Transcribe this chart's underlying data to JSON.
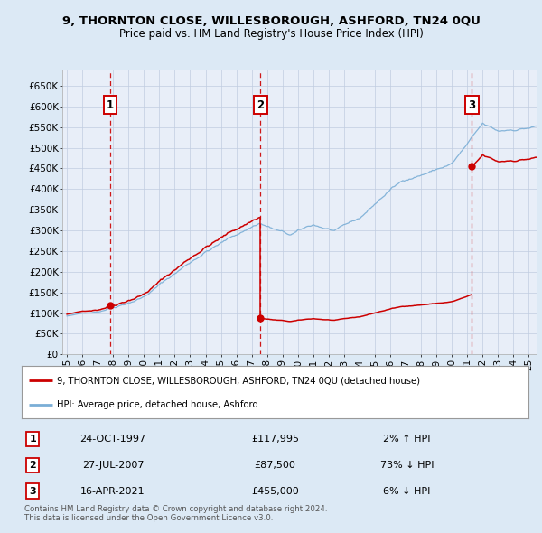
{
  "title": "9, THORNTON CLOSE, WILLESBOROUGH, ASHFORD, TN24 0QU",
  "subtitle": "Price paid vs. HM Land Registry's House Price Index (HPI)",
  "bg_color": "#dce9f5",
  "plot_bg_color": "#e8eef8",
  "grid_color": "#c0cce0",
  "hpi_color": "#7aaed6",
  "price_color": "#cc0000",
  "yticks": [
    0,
    50000,
    100000,
    150000,
    200000,
    250000,
    300000,
    350000,
    400000,
    450000,
    500000,
    550000,
    600000,
    650000
  ],
  "ytick_labels": [
    "£0",
    "£50K",
    "£100K",
    "£150K",
    "£200K",
    "£250K",
    "£300K",
    "£350K",
    "£400K",
    "£450K",
    "£500K",
    "£550K",
    "£600K",
    "£650K"
  ],
  "xlim_start": 1994.7,
  "xlim_end": 2025.5,
  "ylim_bottom": 0,
  "ylim_top": 690000,
  "xtick_years": [
    1995,
    1996,
    1997,
    1998,
    1999,
    2000,
    2001,
    2002,
    2003,
    2004,
    2005,
    2006,
    2007,
    2008,
    2009,
    2010,
    2011,
    2012,
    2013,
    2014,
    2015,
    2016,
    2017,
    2018,
    2019,
    2020,
    2021,
    2022,
    2023,
    2024,
    2025
  ],
  "transactions": [
    {
      "id": 1,
      "date": "24-OCT-1997",
      "year": 1997.81,
      "price": 117995,
      "pct": "2%",
      "dir": "↑"
    },
    {
      "id": 2,
      "date": "27-JUL-2007",
      "year": 2007.57,
      "price": 87500,
      "pct": "73%",
      "dir": "↓"
    },
    {
      "id": 3,
      "date": "16-APR-2021",
      "year": 2021.29,
      "price": 455000,
      "pct": "6%",
      "dir": "↓"
    }
  ],
  "legend_house_label": "9, THORNTON CLOSE, WILLESBOROUGH, ASHFORD, TN24 0QU (detached house)",
  "legend_hpi_label": "HPI: Average price, detached house, Ashford",
  "footer_line1": "Contains HM Land Registry data © Crown copyright and database right 2024.",
  "footer_line2": "This data is licensed under the Open Government Licence v3.0."
}
